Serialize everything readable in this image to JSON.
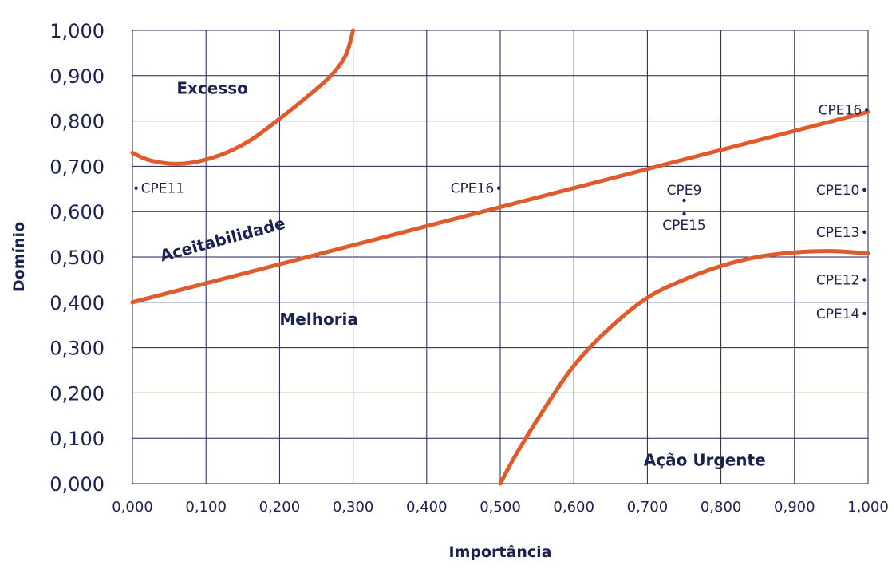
{
  "chart_data": {
    "type": "line",
    "xlabel": "Importância",
    "ylabel": "Domínio",
    "xlim": [
      0,
      1
    ],
    "ylim": [
      0,
      1
    ],
    "grid": true,
    "x_ticks": [
      "0,000",
      "0,100",
      "0,200",
      "0,300",
      "0,400",
      "0,500",
      "0,600",
      "0,700",
      "0,800",
      "0,900",
      "1,000"
    ],
    "y_ticks": [
      "0,000",
      "0,100",
      "0,200",
      "0,300",
      "0,400",
      "0,500",
      "0,600",
      "0,700",
      "0,800",
      "0,900",
      "1,000"
    ],
    "curves": [
      {
        "id": "excesso-boundary",
        "color": "#e05a2b",
        "points": [
          [
            0.0,
            0.73
          ],
          [
            0.02,
            0.715
          ],
          [
            0.05,
            0.706
          ],
          [
            0.08,
            0.708
          ],
          [
            0.12,
            0.725
          ],
          [
            0.16,
            0.757
          ],
          [
            0.2,
            0.805
          ],
          [
            0.24,
            0.857
          ],
          [
            0.27,
            0.9
          ],
          [
            0.29,
            0.945
          ],
          [
            0.3,
            1.0
          ]
        ]
      },
      {
        "id": "aceitabilidade-line",
        "color": "#e05a2b",
        "points": [
          [
            0.0,
            0.4
          ],
          [
            1.0,
            0.82
          ]
        ]
      },
      {
        "id": "acao-urgente-boundary",
        "color": "#e05a2b",
        "points": [
          [
            0.5,
            0.0
          ],
          [
            0.52,
            0.06
          ],
          [
            0.55,
            0.14
          ],
          [
            0.6,
            0.26
          ],
          [
            0.65,
            0.345
          ],
          [
            0.7,
            0.41
          ],
          [
            0.75,
            0.45
          ],
          [
            0.8,
            0.48
          ],
          [
            0.85,
            0.5
          ],
          [
            0.9,
            0.51
          ],
          [
            0.95,
            0.513
          ],
          [
            1.0,
            0.508
          ]
        ]
      }
    ],
    "regions": [
      {
        "label": "Excesso",
        "x": 0.06,
        "y": 0.86
      },
      {
        "label": "Aceitabilidade",
        "x": 0.04,
        "y": 0.49,
        "rotate": -15
      },
      {
        "label": "Melhoria",
        "x": 0.2,
        "y": 0.35
      },
      {
        "label": "Ação Urgente",
        "x": 0.695,
        "y": 0.04
      }
    ],
    "points": [
      {
        "label": "CPE16",
        "x": 0.998,
        "y": 0.825,
        "side": "left"
      },
      {
        "label": "CPE11",
        "x": 0.005,
        "y": 0.652,
        "side": "right"
      },
      {
        "label": "CPE16",
        "x": 0.498,
        "y": 0.652,
        "side": "left"
      },
      {
        "label": "CPE9",
        "x": 0.75,
        "y": 0.625,
        "side": "above"
      },
      {
        "label": "CPE15",
        "x": 0.75,
        "y": 0.595,
        "side": "below"
      },
      {
        "label": "CPE10",
        "x": 0.995,
        "y": 0.648,
        "side": "left"
      },
      {
        "label": "CPE13",
        "x": 0.995,
        "y": 0.555,
        "side": "left"
      },
      {
        "label": "CPE12",
        "x": 0.995,
        "y": 0.45,
        "side": "left"
      },
      {
        "label": "CPE14",
        "x": 0.995,
        "y": 0.375,
        "side": "left"
      }
    ]
  }
}
